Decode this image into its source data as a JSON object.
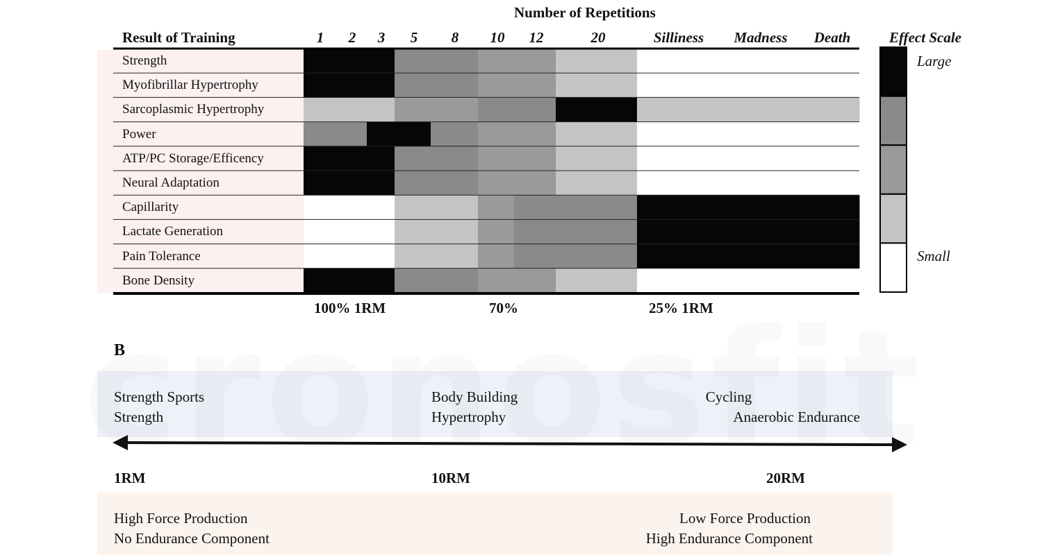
{
  "chart_data": {
    "type": "heatmap",
    "title": "Number of Repetitions",
    "row_header": "Result of Training",
    "columns": [
      "1",
      "2",
      "3",
      "5",
      "8",
      "10",
      "12",
      "20",
      "Silliness",
      "Madness",
      "Death"
    ],
    "rows": [
      "Strength",
      "Myofibrillar Hypertrophy",
      "Sarcoplasmic Hypertrophy",
      "Power",
      "ATP/PC Storage/Efficency",
      "Neural Adaptation",
      "Capillarity",
      "Lactate Generation",
      "Pain Tolerance",
      "Bone Density"
    ],
    "effect_levels": [
      [
        4,
        4,
        4,
        3,
        3,
        2,
        2,
        1,
        0,
        0,
        0
      ],
      [
        4,
        4,
        4,
        3,
        3,
        2,
        2,
        1,
        0,
        0,
        0
      ],
      [
        1,
        1,
        1,
        2,
        2,
        3,
        3,
        4,
        1,
        1,
        1
      ],
      [
        3,
        3,
        4,
        4,
        3,
        2,
        2,
        1,
        0,
        0,
        0
      ],
      [
        4,
        4,
        4,
        3,
        3,
        2,
        2,
        1,
        0,
        0,
        0
      ],
      [
        4,
        4,
        4,
        3,
        3,
        2,
        2,
        1,
        0,
        0,
        0
      ],
      [
        0,
        0,
        0,
        1,
        1,
        2,
        3,
        3,
        4,
        4,
        4
      ],
      [
        0,
        0,
        0,
        1,
        1,
        2,
        3,
        3,
        4,
        4,
        4
      ],
      [
        0,
        0,
        0,
        1,
        1,
        2,
        3,
        3,
        4,
        4,
        4
      ],
      [
        4,
        4,
        4,
        3,
        3,
        2,
        2,
        1,
        0,
        0,
        0
      ]
    ],
    "effect_scale": {
      "title": "Effect Scale",
      "high_label": "Large",
      "low_label": "Small",
      "level_colors": [
        "#ffffff",
        "#c4c4c4",
        "#9a9a9a",
        "#8a8a8a",
        "#060606"
      ]
    },
    "intensity_labels": [
      {
        "text": "100% 1RM",
        "near_column": "2"
      },
      {
        "text": "70%",
        "near_column": "10"
      },
      {
        "text": "25% 1RM",
        "near_column": "Silliness"
      }
    ]
  },
  "section_b": {
    "label": "B",
    "continuum": [
      {
        "line1": "Strength Sports",
        "line2": "Strength"
      },
      {
        "line1": "Body Building",
        "line2": "Hypertrophy"
      },
      {
        "line1": "Cycling",
        "line2": "Anaerobic Endurance"
      }
    ],
    "rm_markers": [
      "1RM",
      "10RM",
      "20RM"
    ],
    "force": [
      {
        "line1": "High Force Production",
        "line2": "No Endurance Component"
      },
      {
        "line1": "Low Force Production",
        "line2": "High Endurance Component"
      }
    ]
  },
  "watermark": "cronosfit"
}
